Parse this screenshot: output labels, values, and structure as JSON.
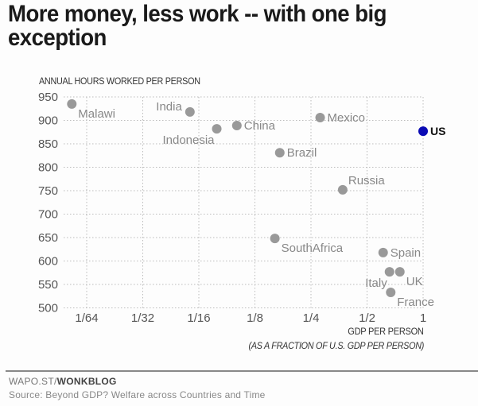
{
  "title": "More money, less work -- with one big exception",
  "y_axis_title": "ANNUAL HOURS WORKED PER PERSON",
  "x_axis_title": "GDP PER PERSON",
  "x_axis_subtitle": "(AS A FRACTION OF U.S. GDP PER PERSON)",
  "footer": {
    "credit_prefix": "WAPO.ST/",
    "credit_bold": "WONKBLOG",
    "source": "Source: Beyond GDP? Welfare across Countries and Time"
  },
  "colors": {
    "highlight": "#0a0ab4",
    "point": "#999999",
    "grid": "#bbbbbb"
  },
  "chart_data": {
    "type": "scatter",
    "title": "More money, less work -- with one big exception",
    "xlabel": "GDP PER PERSON (AS A FRACTION OF U.S. GDP PER PERSON)",
    "ylabel": "ANNUAL HOURS WORKED PER PERSON",
    "x_scale": "log2",
    "x_ticks": [
      {
        "value": 0.015625,
        "label": "1/64"
      },
      {
        "value": 0.03125,
        "label": "1/32"
      },
      {
        "value": 0.0625,
        "label": "1/16"
      },
      {
        "value": 0.125,
        "label": "1/8"
      },
      {
        "value": 0.25,
        "label": "1/4"
      },
      {
        "value": 0.5,
        "label": "1/2"
      },
      {
        "value": 1,
        "label": "1"
      }
    ],
    "y_ticks": [
      500,
      550,
      600,
      650,
      700,
      750,
      800,
      850,
      900,
      950
    ],
    "xlim": [
      0.0116,
      1.0
    ],
    "ylim": [
      500,
      950
    ],
    "grid": true,
    "legend": null,
    "points": [
      {
        "label": "Malawi",
        "x": 0.013,
        "y": 935,
        "label_pos": "below-right"
      },
      {
        "label": "India",
        "x": 0.056,
        "y": 918,
        "label_pos": "left"
      },
      {
        "label": "Indonesia",
        "x": 0.078,
        "y": 882,
        "label_pos": "below-left"
      },
      {
        "label": "China",
        "x": 0.1,
        "y": 889,
        "label_pos": "right"
      },
      {
        "label": "Brazil",
        "x": 0.17,
        "y": 831,
        "label_pos": "right"
      },
      {
        "label": "Mexico",
        "x": 0.28,
        "y": 906,
        "label_pos": "right"
      },
      {
        "label": "Russia",
        "x": 0.37,
        "y": 752,
        "label_pos": "above-right"
      },
      {
        "label": "SouthAfrica",
        "x": 0.16,
        "y": 648,
        "label_pos": "below-right"
      },
      {
        "label": "Spain",
        "x": 0.61,
        "y": 618,
        "label_pos": "right"
      },
      {
        "label": "Italy",
        "x": 0.66,
        "y": 577,
        "label_pos": "below-left"
      },
      {
        "label": "UK",
        "x": 0.75,
        "y": 577,
        "label_pos": "below-right"
      },
      {
        "label": "France",
        "x": 0.67,
        "y": 533,
        "label_pos": "below-right"
      },
      {
        "label": "US",
        "x": 1.0,
        "y": 877,
        "label_pos": "right",
        "highlight": true
      }
    ]
  }
}
